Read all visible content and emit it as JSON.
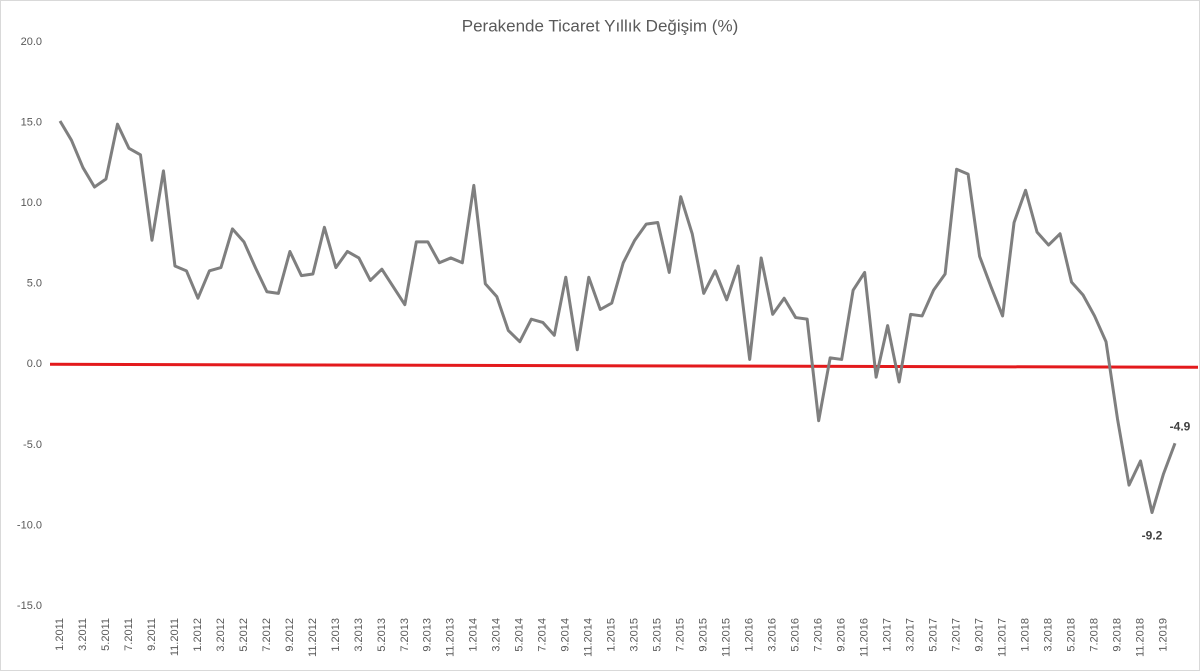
{
  "chart_data": {
    "type": "line",
    "title": "Perakende Ticaret Yıllık Değişim (%)",
    "categories": [
      "1.2011",
      null,
      "3.2011",
      null,
      "5.2011",
      null,
      "7.2011",
      null,
      "9.2011",
      null,
      "11.2011",
      null,
      "1.2012",
      null,
      "3.2012",
      null,
      "5.2012",
      null,
      "7.2012",
      null,
      "9.2012",
      null,
      "11.2012",
      null,
      "1.2013",
      null,
      "3.2013",
      null,
      "5.2013",
      null,
      "7.2013",
      null,
      "9.2013",
      null,
      "11.2013",
      null,
      "1.2014",
      null,
      "3.2014",
      null,
      "5.2014",
      null,
      "7.2014",
      null,
      "9.2014",
      null,
      "11.2014",
      null,
      "1.2015",
      null,
      "3.2015",
      null,
      "5.2015",
      null,
      "7.2015",
      null,
      "9.2015",
      null,
      "11.2015",
      null,
      "1.2016",
      null,
      "3.2016",
      null,
      "5.2016",
      null,
      "7.2016",
      null,
      "9.2016",
      null,
      "11.2016",
      null,
      "1.2017",
      null,
      "3.2017",
      null,
      "5.2017",
      null,
      "7.2017",
      null,
      "9.2017",
      null,
      "11.2017",
      null,
      "1.2018",
      null,
      "3.2018",
      null,
      "5.2018",
      null,
      "7.2018",
      null,
      "9.2018",
      null,
      "11.2018",
      null,
      "1.2019",
      null
    ],
    "series": [
      {
        "color": "#7f7f7f",
        "values": [
          15.1,
          13.9,
          12.2,
          11.0,
          11.5,
          14.9,
          13.4,
          13.0,
          7.7,
          12.0,
          6.1,
          5.8,
          4.1,
          5.8,
          6.0,
          8.4,
          7.6,
          6.0,
          4.5,
          4.4,
          7.0,
          5.5,
          5.6,
          8.5,
          6.0,
          7.0,
          6.6,
          5.2,
          5.9,
          4.8,
          3.7,
          7.6,
          7.6,
          6.3,
          6.6,
          6.3,
          11.1,
          5.0,
          4.2,
          2.1,
          1.4,
          2.8,
          2.6,
          1.8,
          5.4,
          0.9,
          5.4,
          3.4,
          3.8,
          6.3,
          7.7,
          8.7,
          8.8,
          5.7,
          10.4,
          8.1,
          4.4,
          5.8,
          4.0,
          6.1,
          0.3,
          6.6,
          3.1,
          4.1,
          2.9,
          2.8,
          -3.5,
          0.4,
          0.3,
          4.6,
          5.7,
          -0.8,
          2.4,
          -1.1,
          3.1,
          3.0,
          4.6,
          5.6,
          12.1,
          11.8,
          6.7,
          4.8,
          3.0,
          8.8,
          10.8,
          8.2,
          7.4,
          8.1,
          5.1,
          4.3,
          3.0,
          1.4,
          -3.4,
          -7.5,
          -6.0,
          -9.2,
          -6.8,
          -4.9
        ]
      }
    ],
    "labeled_points": [
      95,
      97
    ],
    "reference_line": {
      "value": 0,
      "color": "#e31a1c"
    },
    "ylim": [
      -15,
      20
    ],
    "yticks": [
      {
        "value": -15,
        "label": "-15.0"
      },
      {
        "value": -10,
        "label": "-10.0"
      },
      {
        "value": -5,
        "label": "-5.0"
      },
      {
        "value": 0,
        "label": "0.0"
      },
      {
        "value": 5,
        "label": "5.0"
      },
      {
        "value": 10,
        "label": "10.0"
      },
      {
        "value": 15,
        "label": "15.0"
      },
      {
        "value": 20,
        "label": "20.0"
      }
    ],
    "grid": false
  }
}
